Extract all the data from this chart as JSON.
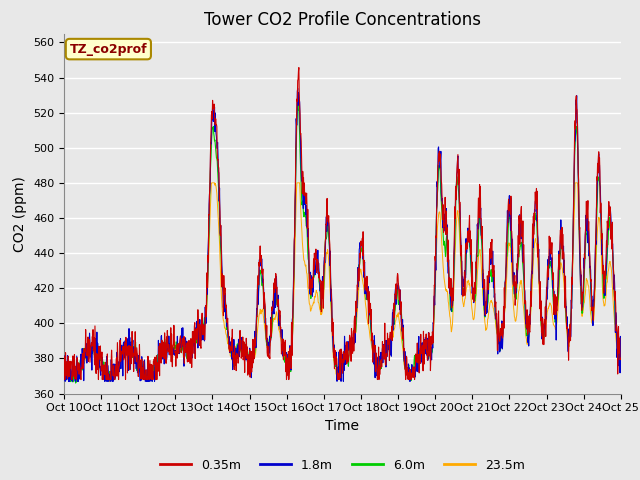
{
  "title": "Tower CO2 Profile Concentrations",
  "xlabel": "Time",
  "ylabel": "CO2 (ppm)",
  "ylim": [
    360,
    565
  ],
  "yticks": [
    360,
    380,
    400,
    420,
    440,
    460,
    480,
    500,
    520,
    540,
    560
  ],
  "xtick_labels": [
    "Oct 10",
    "Oct 11",
    "Oct 12",
    "Oct 13",
    "Oct 14",
    "Oct 15",
    "Oct 16",
    "Oct 17",
    "Oct 18",
    "Oct 19",
    "Oct 20",
    "Oct 21",
    "Oct 22",
    "Oct 23",
    "Oct 24",
    "Oct 25"
  ],
  "colors": {
    "red": "#cc0000",
    "blue": "#0000cc",
    "green": "#00cc00",
    "orange": "#ffaa00"
  },
  "legend_labels": [
    "0.35m",
    "1.8m",
    "6.0m",
    "23.5m"
  ],
  "annotation_text": "TZ_co2prof",
  "annotation_box_color": "#ffffcc",
  "annotation_border_color": "#aa8800",
  "fig_bg": "#e8e8e8",
  "plot_bg": "#e8e8e8",
  "grid_color": "#ffffff",
  "title_fontsize": 12,
  "label_fontsize": 10,
  "tick_fontsize": 8,
  "n_days": 15,
  "pts_per_day": 96
}
